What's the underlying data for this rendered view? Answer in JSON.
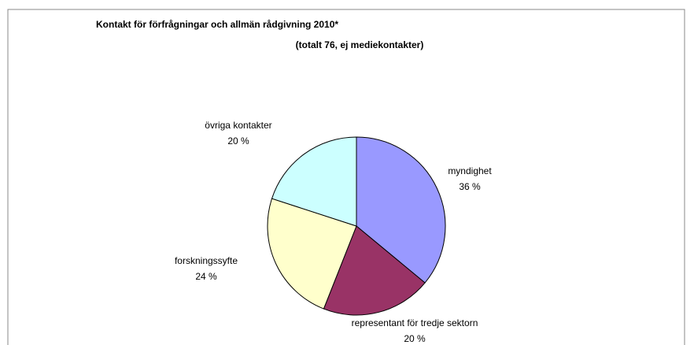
{
  "chart_data": {
    "type": "pie",
    "title": "Kontakt för förfrågningar och allmän rådgivning 2010*",
    "subtitle": "(totalt 76, ej mediekontakter)",
    "categories": [
      "myndighet",
      "representant för tredje sektorn",
      "forskningssyfte",
      "övriga kontakter"
    ],
    "values": [
      36,
      20,
      24,
      20
    ],
    "value_labels": [
      "36 %",
      "20 %",
      "24 %",
      "20 %"
    ],
    "colors": [
      "#9999ff",
      "#993366",
      "#ffffcc",
      "#ccffff"
    ]
  }
}
